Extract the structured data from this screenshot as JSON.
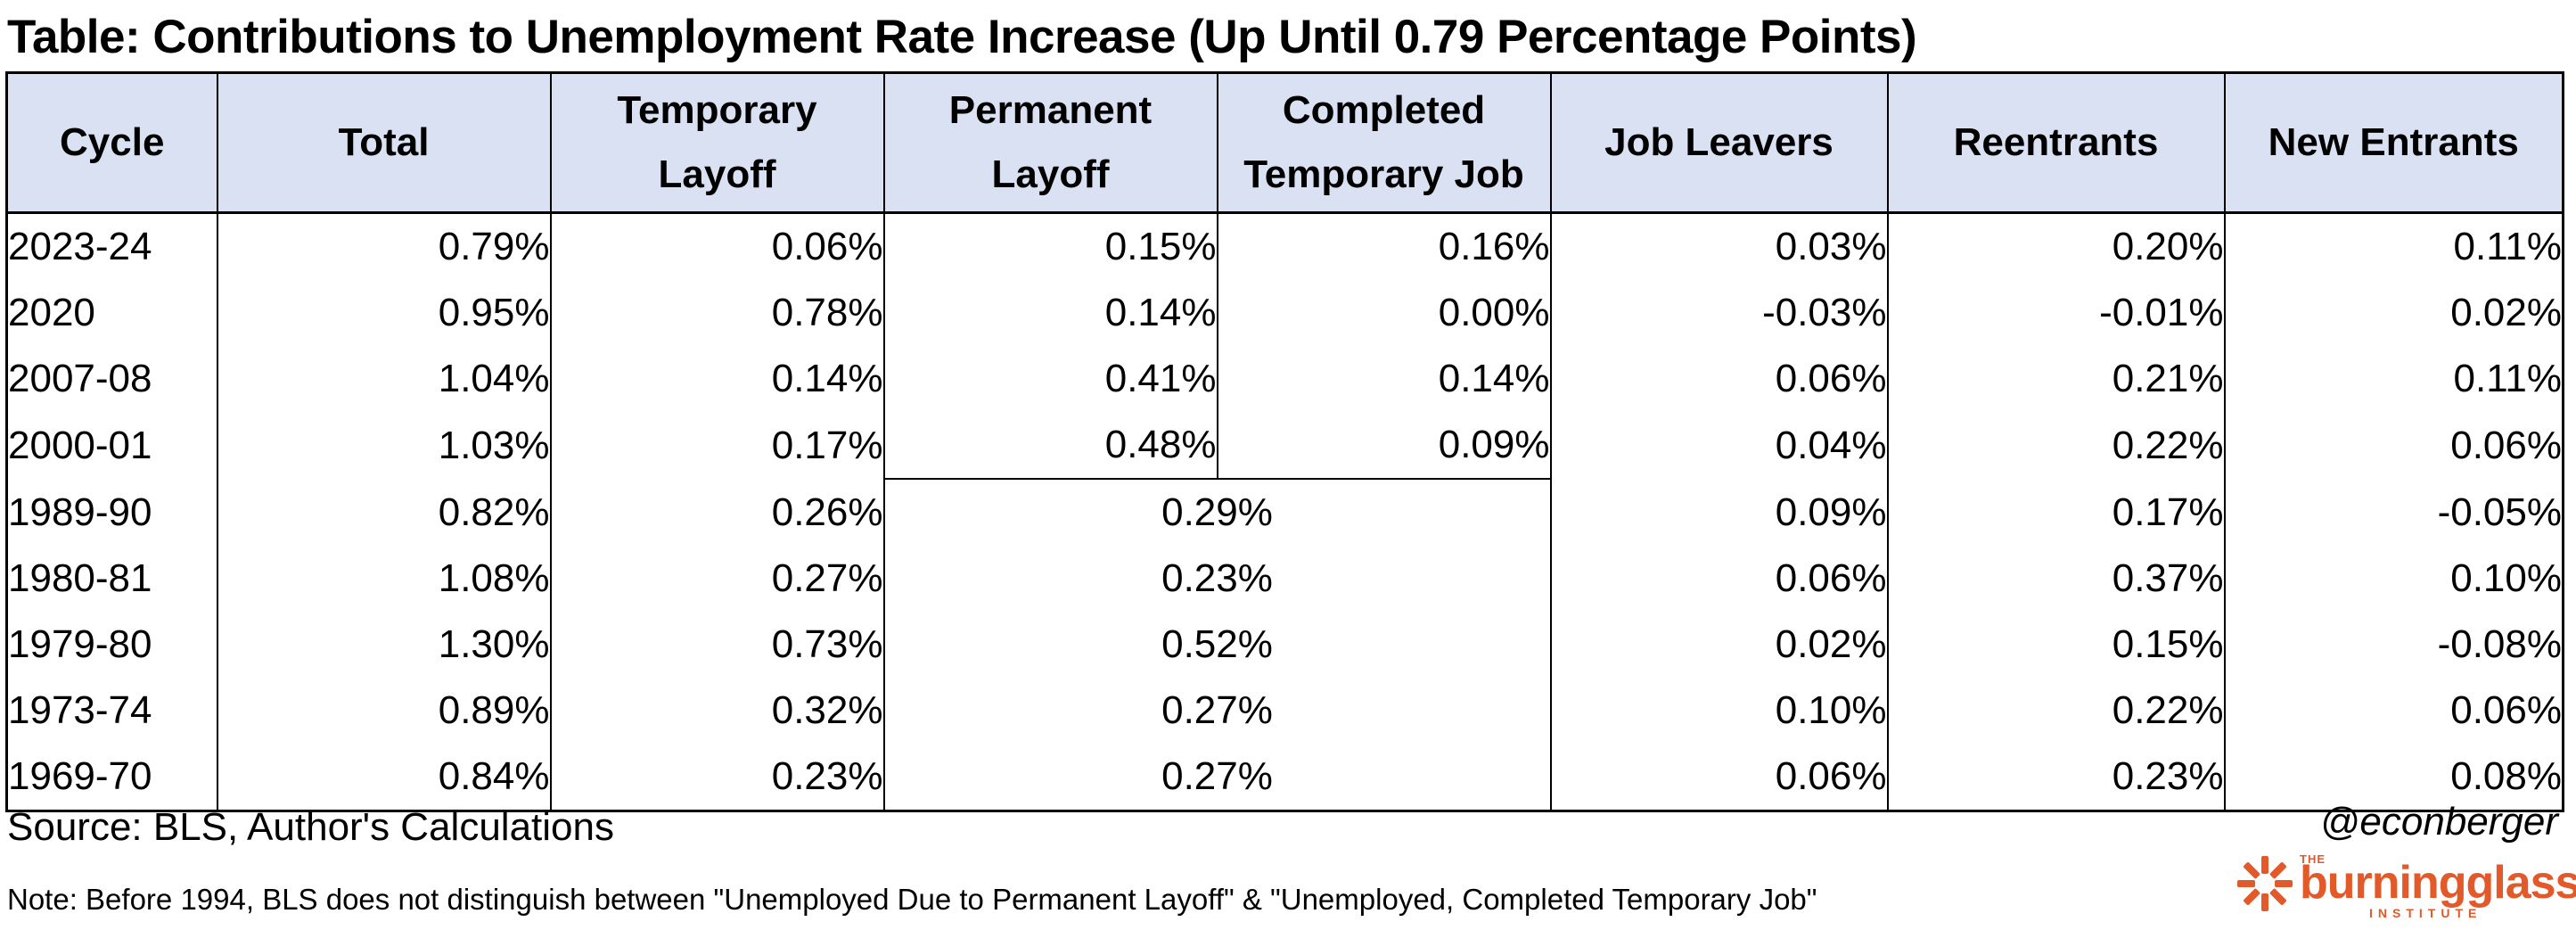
{
  "chart_data": {
    "type": "table",
    "title": "Table: Contributions to Unemployment Rate Increase (Up Until 0.79 Percentage Points)",
    "columns": [
      [
        "Cycle"
      ],
      [
        "Total"
      ],
      [
        "Temporary",
        "Layoff"
      ],
      [
        "Permanent",
        "Layoff"
      ],
      [
        "Completed",
        "Temporary Job"
      ],
      [
        "Job Leavers"
      ],
      [
        "Reentrants"
      ],
      [
        "New Entrants"
      ]
    ],
    "rows": [
      {
        "cycle": "2023-24",
        "total": "0.79%",
        "temporary_layoff": "0.06%",
        "permanent_layoff": "0.15%",
        "completed_temporary_job": "0.16%",
        "job_leavers": "0.03%",
        "reentrants": "0.20%",
        "new_entrants": "0.11%"
      },
      {
        "cycle": "2020",
        "total": "0.95%",
        "temporary_layoff": "0.78%",
        "permanent_layoff": "0.14%",
        "completed_temporary_job": "0.00%",
        "job_leavers": "-0.03%",
        "reentrants": "-0.01%",
        "new_entrants": "0.02%"
      },
      {
        "cycle": "2007-08",
        "total": "1.04%",
        "temporary_layoff": "0.14%",
        "permanent_layoff": "0.41%",
        "completed_temporary_job": "0.14%",
        "job_leavers": "0.06%",
        "reentrants": "0.21%",
        "new_entrants": "0.11%"
      },
      {
        "cycle": "2000-01",
        "total": "1.03%",
        "temporary_layoff": "0.17%",
        "permanent_layoff": "0.48%",
        "completed_temporary_job": "0.09%",
        "job_leavers": "0.04%",
        "reentrants": "0.22%",
        "new_entrants": "0.06%"
      },
      {
        "cycle": "1989-90",
        "total": "0.82%",
        "temporary_layoff": "0.26%",
        "permanent_and_completed_combined": "0.29%",
        "job_leavers": "0.09%",
        "reentrants": "0.17%",
        "new_entrants": "-0.05%"
      },
      {
        "cycle": "1980-81",
        "total": "1.08%",
        "temporary_layoff": "0.27%",
        "permanent_and_completed_combined": "0.23%",
        "job_leavers": "0.06%",
        "reentrants": "0.37%",
        "new_entrants": "0.10%"
      },
      {
        "cycle": "1979-80",
        "total": "1.30%",
        "temporary_layoff": "0.73%",
        "permanent_and_completed_combined": "0.52%",
        "job_leavers": "0.02%",
        "reentrants": "0.15%",
        "new_entrants": "-0.08%"
      },
      {
        "cycle": "1973-74",
        "total": "0.89%",
        "temporary_layoff": "0.32%",
        "permanent_and_completed_combined": "0.27%",
        "job_leavers": "0.10%",
        "reentrants": "0.22%",
        "new_entrants": "0.06%"
      },
      {
        "cycle": "1969-70",
        "total": "0.84%",
        "temporary_layoff": "0.23%",
        "permanent_and_completed_combined": "0.27%",
        "job_leavers": "0.06%",
        "reentrants": "0.23%",
        "new_entrants": "0.08%"
      }
    ],
    "header_color": "#d9e1f2"
  },
  "footer": {
    "source": "Source: BLS, Author's Calculations",
    "handle": "@econberger",
    "note": "Note: Before 1994, BLS does not distinguish between \"Unemployed Due to Permanent Layoff\" & \"Unemployed, Completed Temporary Job\""
  },
  "logo": {
    "small": "THE",
    "word": "burningglass",
    "sub": "INSTITUTE",
    "color": "#e2592a"
  }
}
